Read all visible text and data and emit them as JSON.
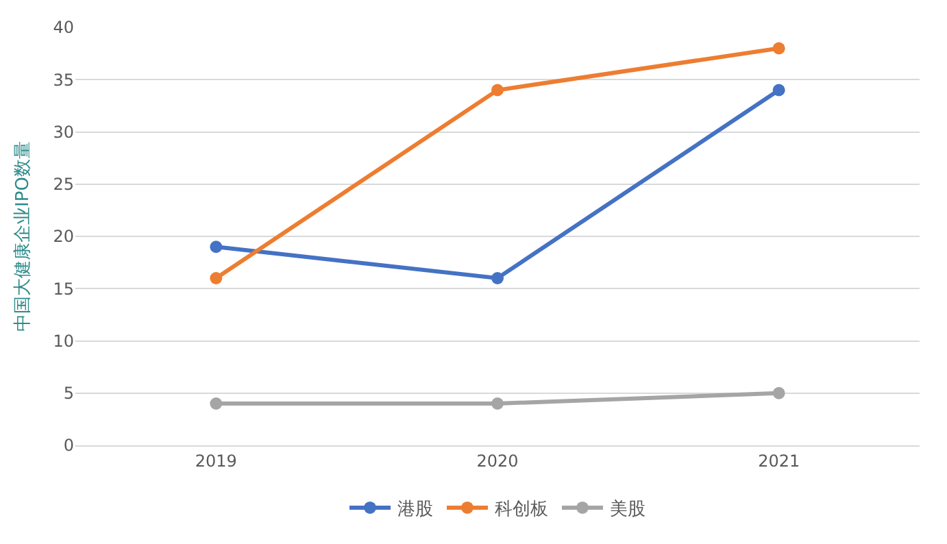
{
  "chart_data": {
    "type": "line",
    "ylabel": "中国大健康企业IPO数量",
    "categories": [
      "2019",
      "2020",
      "2021"
    ],
    "series": [
      {
        "name": "港股",
        "color": "#4472c4",
        "values": [
          19,
          16,
          34
        ]
      },
      {
        "name": "科创板",
        "color": "#ed7d31",
        "values": [
          16,
          34,
          38
        ]
      },
      {
        "name": "美股",
        "color": "#a5a5a5",
        "values": [
          4,
          4,
          5
        ]
      }
    ],
    "ylim": [
      0,
      40
    ],
    "yticks": [
      0,
      5,
      10,
      15,
      20,
      25,
      30,
      35,
      40
    ],
    "grid": "y",
    "legend": "bottom",
    "marker": "circle",
    "line_style": "solid"
  }
}
